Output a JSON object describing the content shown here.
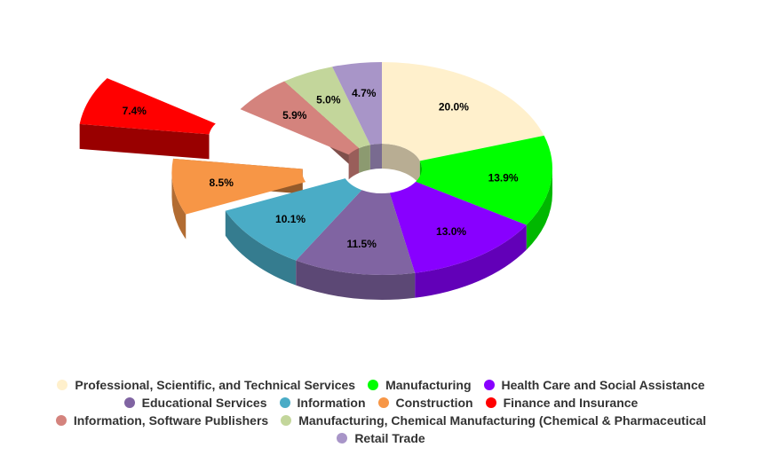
{
  "chart_data": {
    "type": "pie",
    "variant": "3d-donut",
    "title": "",
    "slices": [
      {
        "name": "Professional, Scientific, and Technical Services",
        "value": 20.0,
        "label": "20.0%",
        "color": "#fff0cc",
        "exploded": false
      },
      {
        "name": "Manufacturing",
        "value": 13.9,
        "label": "13.9%",
        "color": "#00ff00",
        "exploded": false
      },
      {
        "name": "Health Care and Social Assistance",
        "value": 13.0,
        "label": "13.0%",
        "color": "#8800ff",
        "exploded": false
      },
      {
        "name": "Educational Services",
        "value": 11.5,
        "label": "11.5%",
        "color": "#8064a2",
        "exploded": false
      },
      {
        "name": "Information",
        "value": 10.1,
        "label": "10.1%",
        "color": "#4aacc6",
        "exploded": false
      },
      {
        "name": "Construction",
        "value": 8.5,
        "label": "8.5%",
        "color": "#f79646",
        "exploded": true
      },
      {
        "name": "Finance and Insurance",
        "value": 7.4,
        "label": "7.4%",
        "color": "#ff0000",
        "exploded": true
      },
      {
        "name": "Information, Software Publishers",
        "value": 5.9,
        "label": "5.9%",
        "color": "#d4837d",
        "exploded": false
      },
      {
        "name": "Manufacturing, Chemical Manufacturing (Chemical & Pharmaceutical",
        "value": 5.0,
        "label": "5.0%",
        "color": "#c3d69b",
        "exploded": false
      },
      {
        "name": "Retail Trade",
        "value": 4.7,
        "label": "4.7%",
        "color": "#a895c8",
        "exploded": false
      }
    ],
    "legend_position": "bottom",
    "legend_rows": [
      [
        0,
        1,
        2
      ],
      [
        3,
        4,
        5,
        6
      ],
      [
        7,
        8
      ],
      [
        9
      ]
    ]
  }
}
